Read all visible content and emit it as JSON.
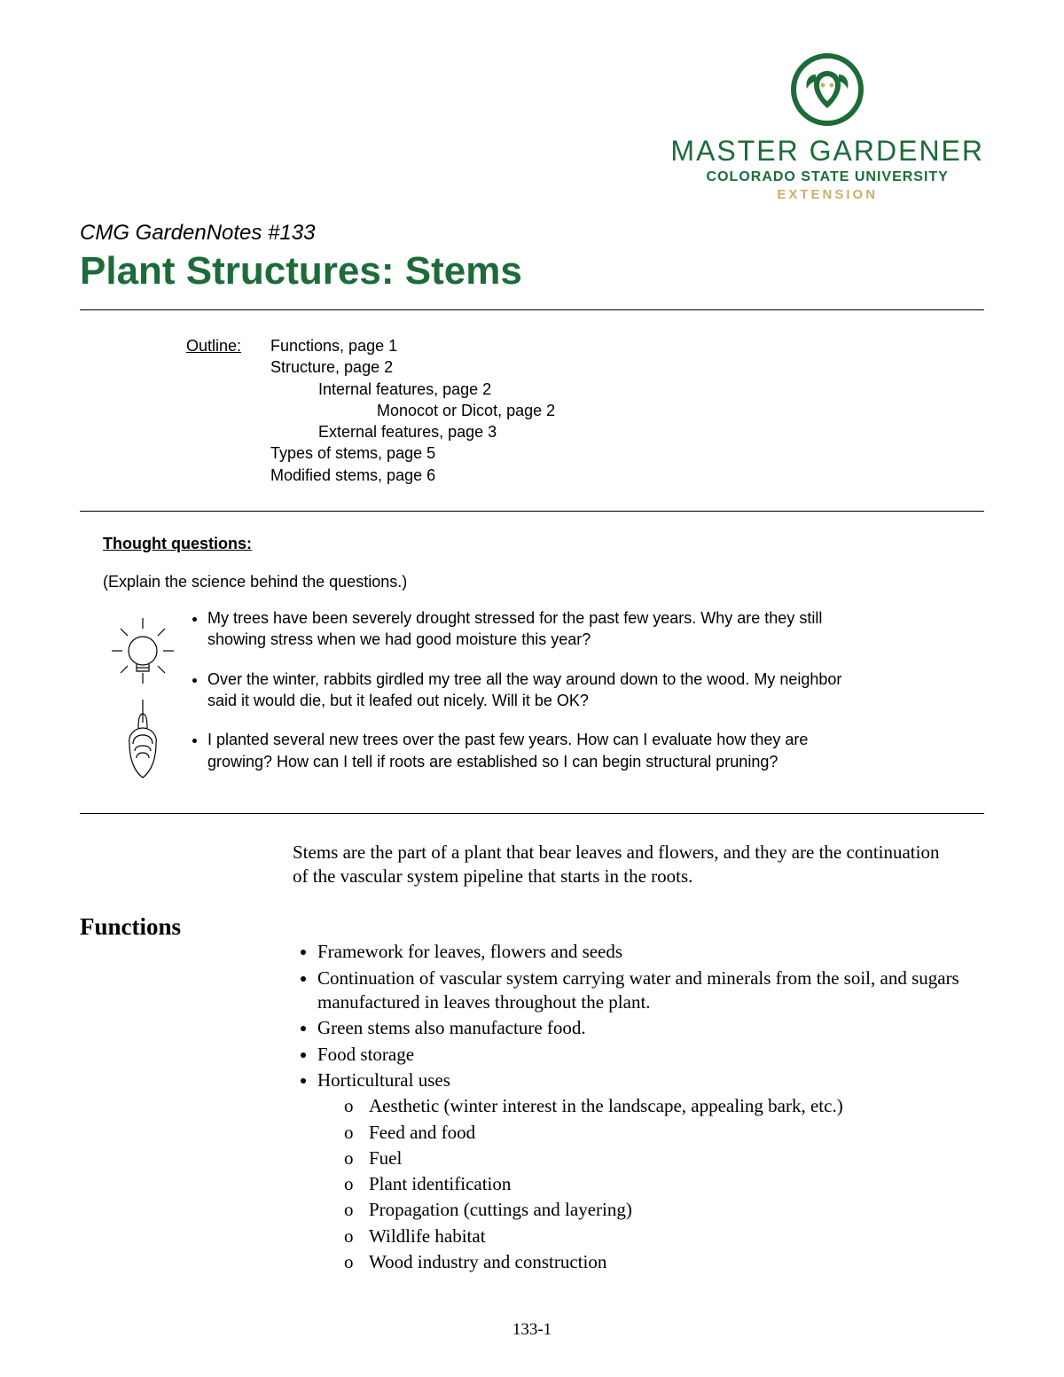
{
  "logo": {
    "master_gardener": "MASTER GARDENER",
    "csu": "COLORADO STATE UNIVERSITY",
    "extension": "EXTENSION",
    "circle_border_color": "#1e6b3a",
    "text_color": "#1e6b3a",
    "extension_color": "#c8b06a"
  },
  "supertitle": "CMG GardenNotes #133",
  "title": "Plant Structures: Stems",
  "outline": {
    "label": "Outline:",
    "lines": [
      {
        "text": "Functions, page 1",
        "indent": 0
      },
      {
        "text": "Structure, page 2",
        "indent": 0
      },
      {
        "text": "Internal features, page 2",
        "indent": 1
      },
      {
        "text": "Monocot or Dicot, page 2",
        "indent": 2
      },
      {
        "text": "External features, page 3",
        "indent": 1
      },
      {
        "text": "Types of stems, page 5",
        "indent": 0
      },
      {
        "text": "Modified stems, page 6",
        "indent": 0
      }
    ]
  },
  "thought": {
    "heading": "Thought questions:",
    "sub": "(Explain the science behind the questions.)",
    "items": [
      "My trees have been severely drought stressed for the past few years.  Why are they still showing stress when we had good moisture this year?",
      "Over the winter, rabbits girdled my tree all the way around down to the wood.  My neighbor said it would die, but it leafed out nicely.  Will it be OK?",
      "I planted several new trees over the past few years.  How can I evaluate how they are growing?  How can I tell if roots are established so I can begin structural pruning?"
    ]
  },
  "intro": "Stems are the part of a plant that bear leaves and flowers, and they are the continuation of the vascular system pipeline that starts in the roots.",
  "functions": {
    "heading": "Functions",
    "items": [
      {
        "text": "Framework for leaves, flowers and seeds"
      },
      {
        "text": "Continuation of vascular system carrying water and minerals from the soil, and sugars manufactured in leaves throughout the plant."
      },
      {
        "text": "Green stems also manufacture food."
      },
      {
        "text": "Food storage"
      },
      {
        "text": "Horticultural uses",
        "sub": [
          "Aesthetic (winter interest in the landscape, appealing bark, etc.)",
          "Feed and food",
          "Fuel",
          "Plant identification",
          "Propagation (cuttings and layering)",
          "Wildlife habitat",
          "Wood industry and construction"
        ]
      }
    ]
  },
  "page_number": "133-1",
  "colors": {
    "title": "#1e6b3a",
    "rule": "#000000",
    "body": "#000000",
    "background": "#ffffff"
  },
  "typography": {
    "sans": "Arial",
    "serif": "Times New Roman",
    "title_size_pt": 33,
    "supertitle_size_pt": 18,
    "body_sans_pt": 14,
    "body_serif_pt": 16,
    "functions_heading_pt": 20
  }
}
